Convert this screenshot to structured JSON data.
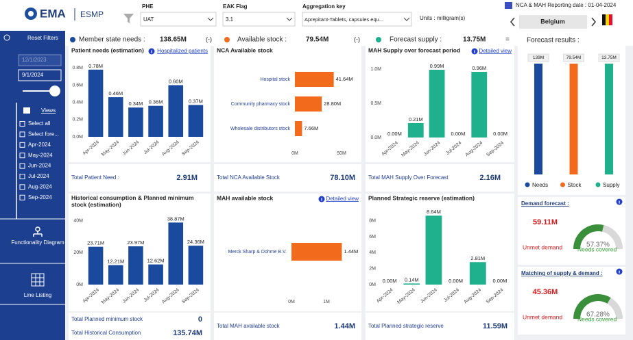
{
  "header": {
    "logo": "EMA",
    "product": "ESMP",
    "phe_label": "PHE",
    "phe_value": "UAT",
    "eak_label": "EAK Flag",
    "eak_value": "3.1",
    "agg_label": "Aggregation key",
    "agg_value": "Aprepitant-Tablets, capsules equ...",
    "units": "Units : milligram(s)",
    "reporting_date": "NCA & MAH Reporting date : 01-04-2024",
    "country": "Belgium"
  },
  "sidebar": {
    "reset": "Reset Filters",
    "date_from": "12/1/2023",
    "date_to": "9/1/2024",
    "views": "Views",
    "options": [
      "Select all",
      "Select fore...",
      "Apr-2024",
      "May-2024",
      "Jun-2024",
      "Jul-2024",
      "Aug-2024",
      "Sep-2024"
    ],
    "nav": [
      "Functionality Diagram",
      "Line Listing"
    ]
  },
  "summary": {
    "needs_label": "Member state needs :",
    "needs_value": "138.65M",
    "needs_sign": "(-)",
    "needs_color": "#1a4a9e",
    "stock_label": "Available stock :",
    "stock_value": "79.54M",
    "stock_sign": "(-)",
    "stock_color": "#f26a1b",
    "supply_label": "Forecast supply :",
    "supply_value": "13.75M",
    "supply_color": "#1fb08e",
    "equals": "=",
    "results_label": "Forecast results :"
  },
  "charts": [
    {
      "type": "bar",
      "title": "Patient needs (estimation)",
      "link": "Hospitalized patients",
      "color": "#1a4a9e",
      "categories": [
        "Apr-2024",
        "May-2024",
        "Jun-2024",
        "Jul-2024",
        "Aug-2024",
        "Sep-2024"
      ],
      "values": [
        0.78,
        0.46,
        0.34,
        0.36,
        0.6,
        0.37
      ],
      "value_labels": [
        "0.78M",
        "0.46M",
        "0.34M",
        "0.36M",
        "0.60M",
        "0.37M"
      ],
      "ylim": [
        0,
        0.85
      ],
      "yticks": [
        {
          "value": 0,
          "label": "0.0M"
        },
        {
          "value": 0.2,
          "label": "0.2M"
        },
        {
          "value": 0.4,
          "label": "0.4M"
        },
        {
          "value": 0.6,
          "label": "0.6M"
        },
        {
          "value": 0.8,
          "label": "0.8M"
        }
      ],
      "totals": [
        {
          "label": "Total Patient Need :",
          "value": "2.91M"
        }
      ]
    },
    {
      "type": "hbar",
      "title": "NCA Available stock",
      "color": "#f26a1b",
      "categories": [
        "Hospital stock",
        "Community pharmacy stock",
        "Wholesale distributors stock"
      ],
      "values": [
        41.64,
        28.8,
        7.66
      ],
      "value_labels": [
        "41.64M",
        "28.80M",
        "7.66M"
      ],
      "xlim": [
        0,
        50
      ],
      "xticks": [
        {
          "value": 0,
          "label": "0M"
        },
        {
          "value": 50,
          "label": "50M"
        }
      ],
      "totals": [
        {
          "label": "Total NCA Available Stock",
          "value": "78.10M"
        }
      ]
    },
    {
      "type": "bar",
      "title": "MAH Supply over forecast period",
      "link": "Detailed view",
      "color": "#1fb08e",
      "categories": [
        "Apr-2024",
        "May-2024",
        "Jun-2024",
        "Jul-2024",
        "Aug-2024",
        "Sep-2024"
      ],
      "values": [
        0,
        0.21,
        0.99,
        0,
        0.96,
        0
      ],
      "value_labels": [
        "0.00M",
        "0.21M",
        "0.99M",
        "0.00M",
        "0.96M",
        "0.00M"
      ],
      "ylim": [
        0,
        1.05
      ],
      "yticks": [
        {
          "value": 0,
          "label": "0.0M"
        },
        {
          "value": 0.5,
          "label": "0.5M"
        },
        {
          "value": 1,
          "label": "1.0M"
        }
      ],
      "totals": [
        {
          "label": "Total MAH Supply Over Forecast",
          "value": "2.16M"
        }
      ]
    },
    {
      "type": "bar",
      "title": "Historical consumption & Planned minimum stock (estimation)",
      "color": "#1a4a9e",
      "categories": [
        "Apr-2024",
        "May-2024",
        "Jun-2024",
        "Jul-2024",
        "Aug-2024",
        "Sep-2024"
      ],
      "values": [
        23.71,
        12.21,
        23.97,
        12.62,
        38.87,
        24.36
      ],
      "value_labels": [
        "23.71M",
        "12.21M",
        "23.97M",
        "12.62M",
        "38.87M",
        "24.36M"
      ],
      "ylim": [
        0,
        42
      ],
      "yticks": [
        {
          "value": 0,
          "label": "0M"
        },
        {
          "value": 20,
          "label": "20M"
        },
        {
          "value": 40,
          "label": "40M"
        }
      ],
      "totals": [
        {
          "label": "Total Planned minimum stock",
          "value": "0"
        },
        {
          "label": "Total Historical Consumption",
          "value": "135.74M"
        }
      ]
    },
    {
      "type": "hbar",
      "title": "MAH available stock",
      "link": "Detailed view",
      "color": "#f26a1b",
      "categories": [
        "Merck Sharp & Dohme B.V."
      ],
      "values": [
        1.44
      ],
      "value_labels": [
        "1.44M"
      ],
      "xlim": [
        0,
        1.5
      ],
      "xticks": [
        {
          "value": 0,
          "label": "0M"
        },
        {
          "value": 1,
          "label": "1M"
        }
      ],
      "totals": [
        {
          "label": "Total MAH available stock",
          "value": "1.44M"
        }
      ]
    },
    {
      "type": "bar",
      "title": "Planned Strategic reserve (estimation)",
      "color": "#1fb08e",
      "categories": [
        "Apr-2024",
        "May-2024",
        "Jun-2024",
        "Jul-2024",
        "Aug-2024",
        "Sep-2024"
      ],
      "values": [
        0,
        0.14,
        8.64,
        0,
        2.81,
        0
      ],
      "value_labels": [
        "0.00M",
        "0.14M",
        "8.64M",
        "0.00M",
        "2.81M",
        "0.00M"
      ],
      "ylim": [
        0,
        9
      ],
      "yticks": [
        {
          "value": 0,
          "label": "0M"
        },
        {
          "value": 2,
          "label": "2M"
        },
        {
          "value": 4,
          "label": "4M"
        },
        {
          "value": 6,
          "label": "6M"
        },
        {
          "value": 8,
          "label": "8M"
        }
      ],
      "totals": [
        {
          "label": "Total Planned strategic reserve",
          "value": "11.59M"
        }
      ]
    }
  ],
  "forecast": {
    "bars": [
      {
        "name": "Needs",
        "label": "139M",
        "color": "#1a4a9e"
      },
      {
        "name": "Stock",
        "label": "79.54M",
        "color": "#f26a1b"
      },
      {
        "name": "Supply",
        "label": "13.75M",
        "color": "#1fb08e"
      }
    ]
  },
  "gauges": [
    {
      "title": "Demand forecast :",
      "amount": "59.11M",
      "percent": 57.37,
      "percent_label": "57.37%",
      "left_label": "Unmet demand",
      "right_label": "Needs covered"
    },
    {
      "title": "Matching of supply & demand :",
      "amount": "45.36M",
      "percent": 67.28,
      "percent_label": "67.28%",
      "left_label": "Unmet demand",
      "right_label": "Needs covered"
    }
  ]
}
